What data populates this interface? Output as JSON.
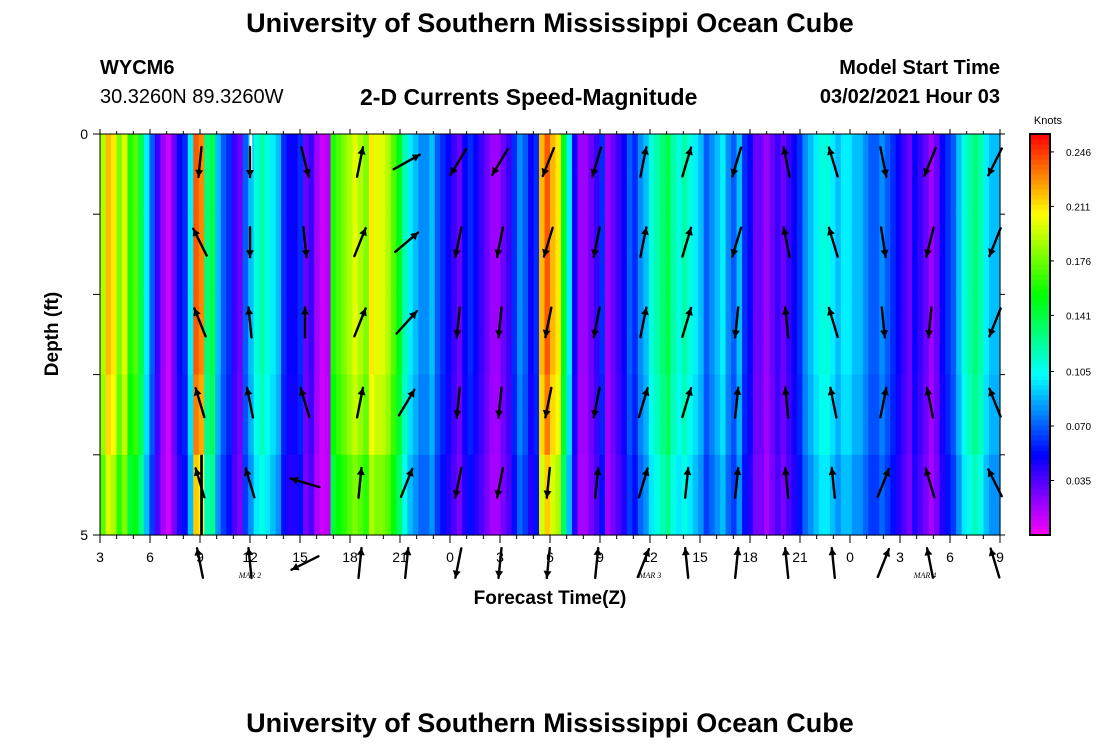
{
  "header": {
    "title": "University of Southern Mississippi Ocean Cube",
    "station": "WYCM6",
    "coords": "30.3260N 89.3260W",
    "subtitle": "2-D Currents Speed-Magnitude",
    "model_start_label": "Model Start Time",
    "model_start_value": "03/02/2021 Hour 03"
  },
  "footer": {
    "title": "University of Southern Mississippi Ocean Cube"
  },
  "chart_data": {
    "type": "heatmap",
    "title": "2-D Currents Speed-Magnitude",
    "xlabel": "Forecast Time(Z)",
    "ylabel": "Depth (ft)",
    "x_tick_labels": [
      "3",
      "6",
      "9",
      "12",
      "15",
      "18",
      "21",
      "0",
      "3",
      "6",
      "9",
      "12",
      "15",
      "18",
      "21",
      "0",
      "3",
      "6",
      "9"
    ],
    "x_range_hours": [
      0,
      54
    ],
    "day_labels": [
      {
        "label": "MAR 2",
        "hour": 9
      },
      {
        "label": "MAR 3",
        "hour": 33
      },
      {
        "label": "MAR 4",
        "hour": 49.5
      }
    ],
    "y_tick_labels": [
      "0",
      "5"
    ],
    "ylim": [
      0,
      5
    ],
    "depth_rows": 5,
    "colorbar": {
      "units": "Knots",
      "min": 0.0,
      "max": 0.2575,
      "tick_values": [
        0.035,
        0.07,
        0.105,
        0.141,
        0.176,
        0.211,
        0.246
      ],
      "tick_labels": [
        "0.035",
        "0.070",
        "0.105",
        "0.141",
        "0.176",
        "0.211",
        "0.246"
      ]
    },
    "speed_knots": [
      0.19,
      0.22,
      0.21,
      0.18,
      0.2,
      0.16,
      0.17,
      0.14,
      0.1,
      0.07,
      0.04,
      0.02,
      0.01,
      0.03,
      0.05,
      0.06,
      0.1,
      0.24,
      0.23,
      0.13,
      0.14,
      0.09,
      0.07,
      0.06,
      0.04,
      0.03,
      0.07,
      0.09,
      0.11,
      0.12,
      0.11,
      0.1,
      0.09,
      0.06,
      0.05,
      0.05,
      0.06,
      0.03,
      0.04,
      0.02,
      0.01,
      0.015,
      0.16,
      0.17,
      0.18,
      0.19,
      0.2,
      0.19,
      0.18,
      0.21,
      0.2,
      0.2,
      0.19,
      0.17,
      0.15,
      0.12,
      0.1,
      0.09,
      0.08,
      0.08,
      0.09,
      0.07,
      0.06,
      0.05,
      0.04,
      0.03,
      0.05,
      0.06,
      0.05,
      0.04,
      0.03,
      0.02,
      0.02,
      0.03,
      0.04,
      0.06,
      0.08,
      0.07,
      0.05,
      0.06,
      0.22,
      0.24,
      0.22,
      0.21,
      0.15,
      0.1,
      0.05,
      0.02,
      0.02,
      0.03,
      0.04,
      0.06,
      0.02,
      0.03,
      0.04,
      0.05,
      0.07,
      0.06,
      0.08,
      0.09,
      0.11,
      0.12,
      0.13,
      0.14,
      0.12,
      0.11,
      0.12,
      0.11,
      0.1,
      0.09,
      0.07,
      0.08,
      0.09,
      0.1,
      0.08,
      0.07,
      0.09,
      0.06,
      0.05,
      0.03,
      0.03,
      0.02,
      0.03,
      0.04,
      0.03,
      0.04,
      0.05,
      0.06,
      0.08,
      0.09,
      0.1,
      0.11,
      0.11,
      0.1,
      0.09,
      0.1,
      0.1,
      0.09,
      0.09,
      0.08,
      0.07,
      0.07,
      0.08,
      0.07,
      0.06,
      0.05,
      0.04,
      0.03,
      0.05,
      0.04,
      0.03,
      0.02,
      0.03,
      0.05,
      0.06,
      0.07,
      0.09,
      0.11,
      0.12,
      0.13,
      0.12,
      0.1,
      0.09,
      0.09
    ],
    "depth_factor": [
      1.0,
      1.0,
      1.0,
      0.97,
      0.9
    ],
    "arrow_x_hours": [
      6.0,
      9.0,
      12.3,
      15.6,
      18.4,
      21.5,
      24.0,
      26.9,
      29.8,
      32.6,
      35.2,
      38.2,
      41.2,
      44.0,
      47.0,
      49.8,
      53.7
    ],
    "vectors": [
      {
        "col": 0,
        "row": 0,
        "u": -0.1,
        "v": -1.0
      },
      {
        "col": 1,
        "row": 0,
        "u": 0.0,
        "v": -1.0
      },
      {
        "col": 2,
        "row": 0,
        "u": 0.25,
        "v": -1.0
      },
      {
        "col": 3,
        "row": 0,
        "u": 0.2,
        "v": 1.0
      },
      {
        "col": 4,
        "row": 0,
        "u": 0.9,
        "v": 0.5
      },
      {
        "col": 5,
        "row": 0,
        "u": -0.6,
        "v": -1.0
      },
      {
        "col": 6,
        "row": 0,
        "u": -0.6,
        "v": -1.0
      },
      {
        "col": 7,
        "row": 0,
        "u": -0.4,
        "v": -1.0
      },
      {
        "col": 8,
        "row": 0,
        "u": -0.3,
        "v": -1.0
      },
      {
        "col": 9,
        "row": 0,
        "u": 0.2,
        "v": 1.0
      },
      {
        "col": 10,
        "row": 0,
        "u": 0.3,
        "v": 1.0
      },
      {
        "col": 11,
        "row": 0,
        "u": -0.3,
        "v": -1.0
      },
      {
        "col": 12,
        "row": 0,
        "u": -0.2,
        "v": 1.0
      },
      {
        "col": 13,
        "row": 0,
        "u": -0.3,
        "v": 1.0
      },
      {
        "col": 14,
        "row": 0,
        "u": 0.2,
        "v": -1.0
      },
      {
        "col": 15,
        "row": 0,
        "u": -0.4,
        "v": -1.0
      },
      {
        "col": 16,
        "row": 0,
        "u": -0.5,
        "v": -1.0
      },
      {
        "col": 0,
        "row": 1,
        "u": -0.5,
        "v": 1.0
      },
      {
        "col": 1,
        "row": 1,
        "u": 0.0,
        "v": -1.0
      },
      {
        "col": 2,
        "row": 1,
        "u": 0.1,
        "v": -1.0
      },
      {
        "col": 3,
        "row": 1,
        "u": 0.4,
        "v": 1.0
      },
      {
        "col": 4,
        "row": 1,
        "u": 1.0,
        "v": 0.85
      },
      {
        "col": 5,
        "row": 1,
        "u": -0.2,
        "v": -1.0
      },
      {
        "col": 6,
        "row": 1,
        "u": -0.2,
        "v": -1.0
      },
      {
        "col": 7,
        "row": 1,
        "u": -0.3,
        "v": -1.0
      },
      {
        "col": 8,
        "row": 1,
        "u": -0.2,
        "v": -1.0
      },
      {
        "col": 9,
        "row": 1,
        "u": 0.2,
        "v": 1.0
      },
      {
        "col": 10,
        "row": 1,
        "u": 0.3,
        "v": 1.0
      },
      {
        "col": 11,
        "row": 1,
        "u": -0.3,
        "v": -1.0
      },
      {
        "col": 12,
        "row": 1,
        "u": -0.2,
        "v": 1.0
      },
      {
        "col": 13,
        "row": 1,
        "u": -0.3,
        "v": 1.0
      },
      {
        "col": 14,
        "row": 1,
        "u": 0.15,
        "v": -1.0
      },
      {
        "col": 15,
        "row": 1,
        "u": -0.25,
        "v": -1.0
      },
      {
        "col": 16,
        "row": 1,
        "u": -0.4,
        "v": -1.0
      },
      {
        "col": 0,
        "row": 2,
        "u": -0.4,
        "v": 1.0
      },
      {
        "col": 1,
        "row": 2,
        "u": -0.1,
        "v": 1.0
      },
      {
        "col": 2,
        "row": 2,
        "u": 0.0,
        "v": 1.0
      },
      {
        "col": 3,
        "row": 2,
        "u": 0.4,
        "v": 1.0
      },
      {
        "col": 4,
        "row": 2,
        "u": 0.9,
        "v": 1.0
      },
      {
        "col": 5,
        "row": 2,
        "u": -0.1,
        "v": -1.0
      },
      {
        "col": 6,
        "row": 2,
        "u": -0.1,
        "v": -1.0
      },
      {
        "col": 7,
        "row": 2,
        "u": -0.2,
        "v": -1.0
      },
      {
        "col": 8,
        "row": 2,
        "u": -0.2,
        "v": -1.0
      },
      {
        "col": 9,
        "row": 2,
        "u": 0.2,
        "v": 1.0
      },
      {
        "col": 10,
        "row": 2,
        "u": 0.3,
        "v": 1.0
      },
      {
        "col": 11,
        "row": 2,
        "u": -0.1,
        "v": -1.0
      },
      {
        "col": 12,
        "row": 2,
        "u": -0.1,
        "v": 1.0
      },
      {
        "col": 13,
        "row": 2,
        "u": -0.3,
        "v": 1.0
      },
      {
        "col": 14,
        "row": 2,
        "u": 0.1,
        "v": -1.0
      },
      {
        "col": 15,
        "row": 2,
        "u": -0.1,
        "v": -1.0
      },
      {
        "col": 16,
        "row": 2,
        "u": -0.4,
        "v": -1.0
      },
      {
        "col": 0,
        "row": 3,
        "u": -0.3,
        "v": 1.0
      },
      {
        "col": 1,
        "row": 3,
        "u": -0.2,
        "v": 1.0
      },
      {
        "col": 2,
        "row": 3,
        "u": -0.3,
        "v": 1.0
      },
      {
        "col": 3,
        "row": 3,
        "u": 0.2,
        "v": 1.0
      },
      {
        "col": 4,
        "row": 3,
        "u": 0.6,
        "v": 1.0
      },
      {
        "col": 5,
        "row": 3,
        "u": -0.1,
        "v": -1.0
      },
      {
        "col": 6,
        "row": 3,
        "u": -0.1,
        "v": -1.0
      },
      {
        "col": 7,
        "row": 3,
        "u": -0.2,
        "v": -1.0
      },
      {
        "col": 8,
        "row": 3,
        "u": -0.2,
        "v": -1.0
      },
      {
        "col": 9,
        "row": 3,
        "u": 0.3,
        "v": 1.0
      },
      {
        "col": 10,
        "row": 3,
        "u": 0.3,
        "v": 1.0
      },
      {
        "col": 11,
        "row": 3,
        "u": 0.1,
        "v": 1.0
      },
      {
        "col": 12,
        "row": 3,
        "u": -0.1,
        "v": 1.0
      },
      {
        "col": 13,
        "row": 3,
        "u": -0.2,
        "v": 1.0
      },
      {
        "col": 14,
        "row": 3,
        "u": 0.2,
        "v": 1.0
      },
      {
        "col": 15,
        "row": 3,
        "u": -0.2,
        "v": 1.0
      },
      {
        "col": 16,
        "row": 3,
        "u": -0.4,
        "v": 1.0
      },
      {
        "col": 0,
        "row": 4,
        "u": -0.3,
        "v": 1.0
      },
      {
        "col": 1,
        "row": 4,
        "u": -0.3,
        "v": 1.0
      },
      {
        "col": 2,
        "row": 4,
        "u": -1.0,
        "v": 0.3
      },
      {
        "col": 3,
        "row": 4,
        "u": 0.1,
        "v": 1.0
      },
      {
        "col": 4,
        "row": 4,
        "u": 0.4,
        "v": 1.0
      },
      {
        "col": 5,
        "row": 4,
        "u": -0.2,
        "v": -1.0
      },
      {
        "col": 6,
        "row": 4,
        "u": -0.2,
        "v": -1.0
      },
      {
        "col": 7,
        "row": 4,
        "u": -0.1,
        "v": -1.0
      },
      {
        "col": 8,
        "row": 4,
        "u": 0.1,
        "v": 1.0
      },
      {
        "col": 9,
        "row": 4,
        "u": 0.3,
        "v": 1.0
      },
      {
        "col": 10,
        "row": 4,
        "u": 0.1,
        "v": 1.0
      },
      {
        "col": 11,
        "row": 4,
        "u": 0.1,
        "v": 1.0
      },
      {
        "col": 12,
        "row": 4,
        "u": -0.1,
        "v": 1.0
      },
      {
        "col": 13,
        "row": 4,
        "u": -0.1,
        "v": 1.0
      },
      {
        "col": 14,
        "row": 4,
        "u": 0.4,
        "v": 1.0
      },
      {
        "col": 15,
        "row": 4,
        "u": -0.3,
        "v": 1.0
      },
      {
        "col": 16,
        "row": 4,
        "u": -0.5,
        "v": 1.0
      },
      {
        "col": 0,
        "row": 5,
        "u": -0.2,
        "v": 1.0
      },
      {
        "col": 1,
        "row": 5,
        "u": -0.1,
        "v": 1.0
      },
      {
        "col": 2,
        "row": 5,
        "u": -1.0,
        "v": -0.5
      },
      {
        "col": 3,
        "row": 5,
        "u": 0.1,
        "v": 1.0
      },
      {
        "col": 4,
        "row": 5,
        "u": 0.1,
        "v": 1.0
      },
      {
        "col": 5,
        "row": 5,
        "u": -0.2,
        "v": -1.0
      },
      {
        "col": 6,
        "row": 5,
        "u": -0.1,
        "v": -1.0
      },
      {
        "col": 7,
        "row": 5,
        "u": -0.1,
        "v": -1.0
      },
      {
        "col": 8,
        "row": 5,
        "u": 0.1,
        "v": 1.0
      },
      {
        "col": 9,
        "row": 5,
        "u": 0.4,
        "v": 1.0
      },
      {
        "col": 10,
        "row": 5,
        "u": -0.1,
        "v": 1.0
      },
      {
        "col": 11,
        "row": 5,
        "u": 0.1,
        "v": 1.0
      },
      {
        "col": 12,
        "row": 5,
        "u": -0.1,
        "v": 1.0
      },
      {
        "col": 13,
        "row": 5,
        "u": -0.1,
        "v": 1.0
      },
      {
        "col": 14,
        "row": 5,
        "u": 0.4,
        "v": 1.0
      },
      {
        "col": 15,
        "row": 5,
        "u": -0.2,
        "v": 1.0
      },
      {
        "col": 16,
        "row": 5,
        "u": -0.3,
        "v": 1.0
      }
    ],
    "cell_overrides": [
      {
        "col": 27,
        "rows": [
          0
        ],
        "color": "#ffffff"
      },
      {
        "col": 18,
        "rows": [
          4
        ],
        "color": "#000000"
      }
    ]
  }
}
